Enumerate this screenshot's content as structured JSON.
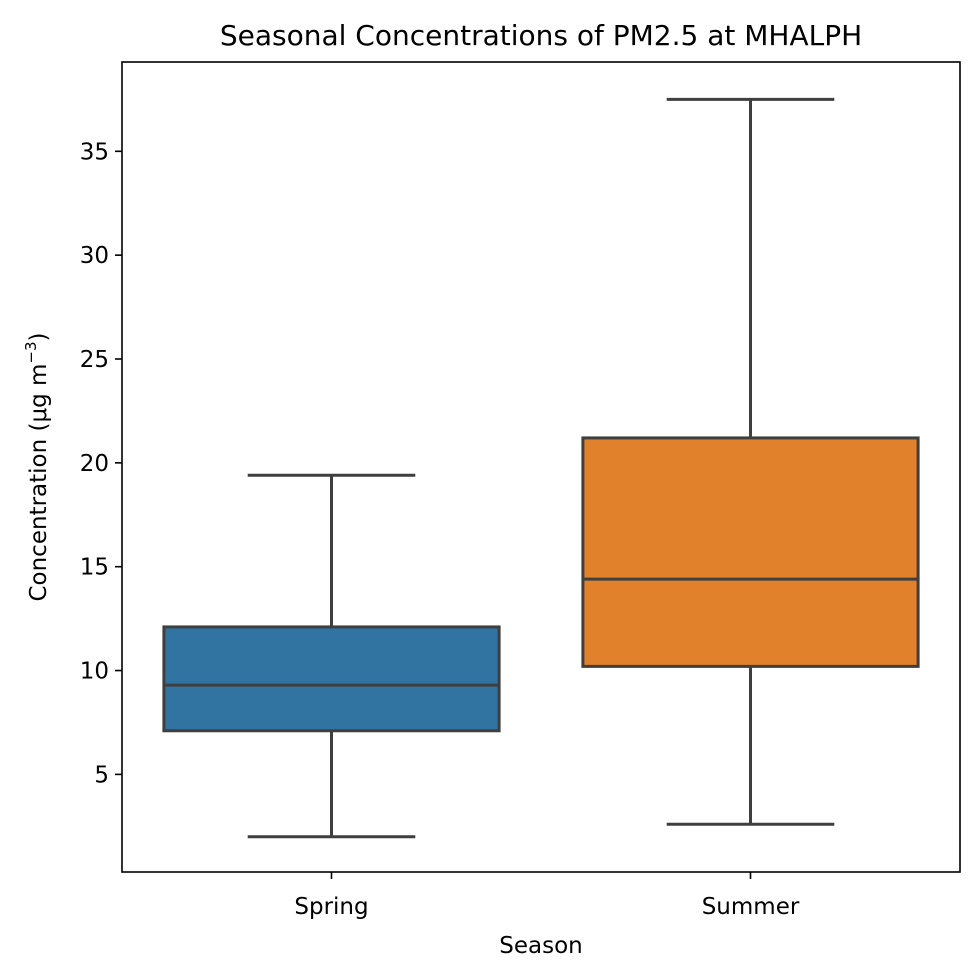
{
  "chart_data": {
    "type": "box",
    "title": "Seasonal Concentrations of PM2.5 at MHALPH",
    "xlabel": "Season",
    "ylabel": "Concentration (μg m",
    "ylabel_sup": "−3",
    "ylabel_close": ")",
    "categories": [
      "Spring",
      "Summer"
    ],
    "boxes": [
      {
        "category": "Spring",
        "whisker_low": 2.0,
        "q1": 7.1,
        "median": 9.3,
        "q3": 12.1,
        "whisker_high": 19.4,
        "color": "#3274a1"
      },
      {
        "category": "Summer",
        "whisker_low": 2.6,
        "q1": 10.2,
        "median": 14.4,
        "q3": 21.2,
        "whisker_high": 37.5,
        "color": "#e1812c"
      }
    ],
    "ylim": [
      0.3,
      39.3
    ],
    "yticks": [
      5,
      10,
      15,
      20,
      25,
      30,
      35
    ],
    "grid": false,
    "line_color": "#3f3f3f"
  }
}
